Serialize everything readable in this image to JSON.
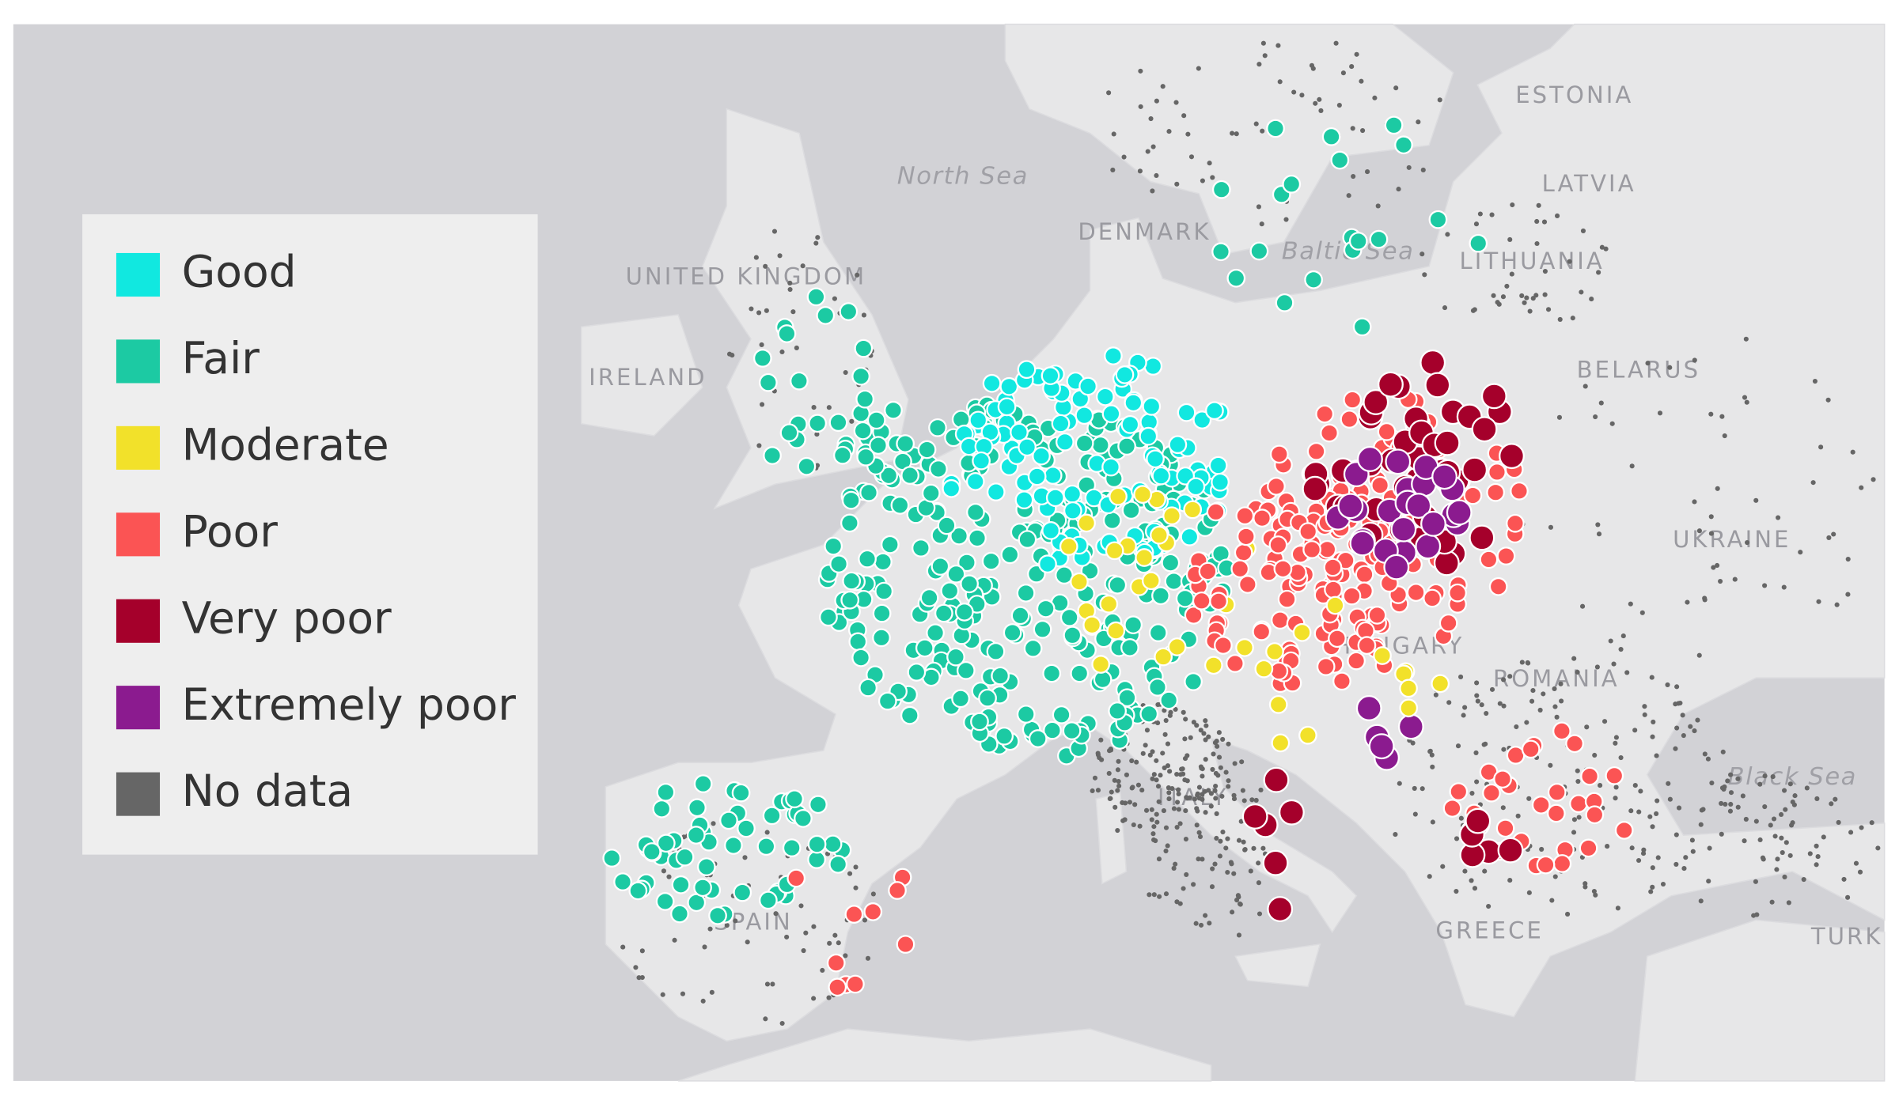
{
  "legend": {
    "items": [
      {
        "label": "Good",
        "color": "#11e8e0"
      },
      {
        "label": "Fair",
        "color": "#1ccaa3"
      },
      {
        "label": "Moderate",
        "color": "#f2e12a"
      },
      {
        "label": "Poor",
        "color": "#fb5454"
      },
      {
        "label": "Very poor",
        "color": "#a5002b"
      },
      {
        "label": "Extremely poor",
        "color": "#8b1b8f"
      },
      {
        "label": "No data",
        "color": "#666666"
      }
    ]
  },
  "map": {
    "labels": [
      "North Sea",
      "DENMARK",
      "Baltic Sea",
      "UNITED KINGDOM",
      "IRELAND",
      "ESTONIA",
      "LATVIA",
      "LITHUANIA",
      "BELARUS",
      "UKRAINE",
      "HUNGARY",
      "ROMANIA",
      "Black Sea",
      "ITALY",
      "SPAIN",
      "GREECE",
      "TURK"
    ]
  }
}
